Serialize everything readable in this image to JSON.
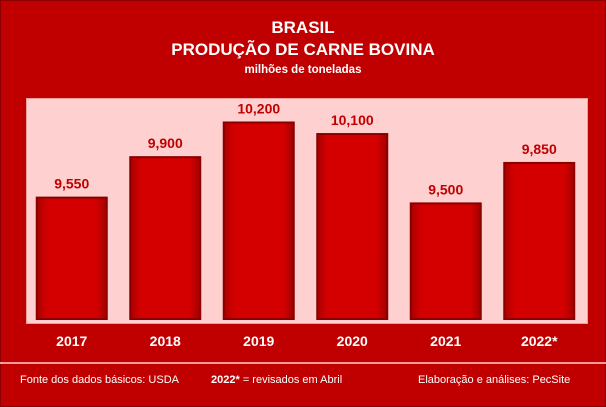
{
  "chart_data": {
    "type": "bar",
    "title": "BRASIL",
    "subtitle": "PRODUÇÃO DE CARNE BOVINA",
    "ylabel": "milhões de toneladas",
    "categories": [
      "2017",
      "2018",
      "2019",
      "2020",
      "2021",
      "2022*"
    ],
    "values": [
      9550,
      9900,
      10200,
      10100,
      9500,
      9850
    ],
    "value_labels": [
      "9,550",
      "9,900",
      "10,200",
      "10,100",
      "9,500",
      "9,850"
    ],
    "grid": false,
    "legend": "none"
  },
  "colors": {
    "background": "#c00000",
    "plot_area": "#ffd0d0",
    "bar": "#d40000",
    "bar_edge": "#8a0000",
    "value_label": "#c00000",
    "text": "#ffffff"
  },
  "footer": {
    "source": "Fonte dos dados básicos: USDA",
    "note_mark": "2022*",
    "note_text": " = revisados em Abril",
    "credit": "Elaboração e análises: PecSite"
  }
}
